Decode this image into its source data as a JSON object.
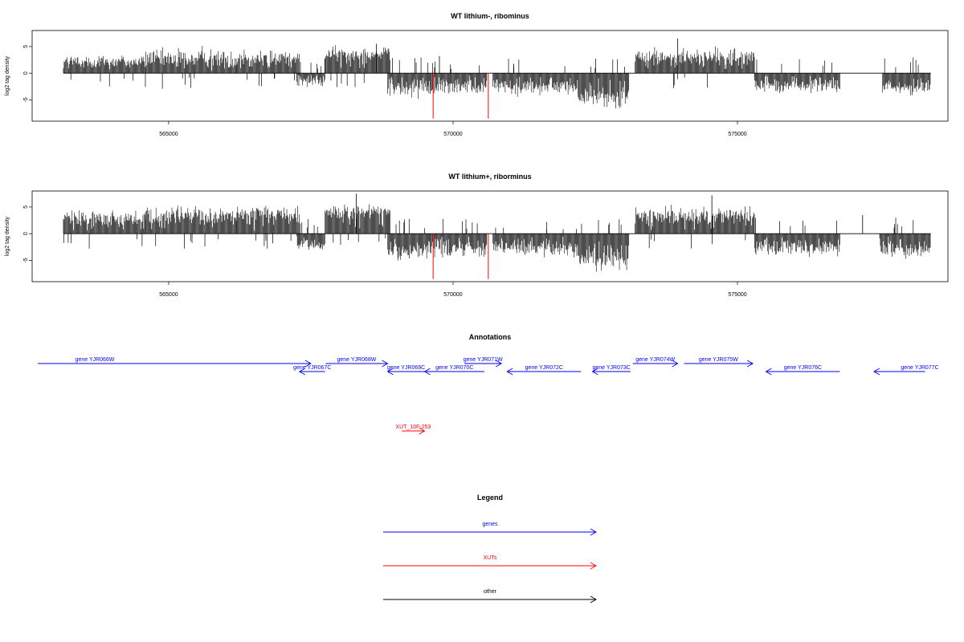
{
  "panels": [
    {
      "title": "WT lithium-, ribominus",
      "ylabel": "log2 tag density",
      "yticks": [
        -5,
        0,
        5
      ],
      "xticks": [
        565000,
        570000,
        575000
      ]
    },
    {
      "title": "WT lithium+, riborminus",
      "ylabel": "log2 tag density",
      "yticks": [
        -5,
        0,
        5
      ],
      "xticks": [
        565000,
        570000,
        575000
      ]
    }
  ],
  "annotations": {
    "title": "Annotations",
    "genes": [
      {
        "label": "gene YJR066W",
        "start": 562700,
        "end": 567500,
        "strand": "+",
        "row": 0
      },
      {
        "label": "gene YJR067C",
        "start": 567300,
        "end": 567750,
        "strand": "-",
        "row": 1
      },
      {
        "label": "gene YJR068W",
        "start": 567760,
        "end": 568850,
        "strand": "+",
        "row": 0
      },
      {
        "label": "gene YJR069C",
        "start": 568850,
        "end": 569500,
        "strand": "-",
        "row": 1
      },
      {
        "label": "gene YJR070C",
        "start": 569500,
        "end": 570550,
        "strand": "-",
        "row": 1
      },
      {
        "label": "gene YJR071W",
        "start": 570200,
        "end": 570850,
        "strand": "+",
        "row": 0
      },
      {
        "label": "gene YJR072C",
        "start": 570950,
        "end": 572250,
        "strand": "-",
        "row": 1
      },
      {
        "label": "gene YJR073C",
        "start": 572450,
        "end": 573120,
        "strand": "-",
        "row": 1
      },
      {
        "label": "gene YJR074W",
        "start": 573160,
        "end": 573950,
        "strand": "+",
        "row": 0
      },
      {
        "label": "gene YJR075W",
        "start": 574060,
        "end": 575270,
        "strand": "+",
        "row": 0
      },
      {
        "label": "gene YJR076C",
        "start": 575500,
        "end": 576800,
        "strand": "-",
        "row": 1
      },
      {
        "label": "gene YJR077C",
        "start": 577400,
        "end": 578300,
        "strand": "-",
        "row": 1
      }
    ],
    "xuts": [
      {
        "label": "XUT_10F-253",
        "start": 569100,
        "end": 569500,
        "strand": "+"
      }
    ]
  },
  "legend": {
    "title": "Legend",
    "items": [
      {
        "label": "genes",
        "color": "#0000ff"
      },
      {
        "label": "XUTs",
        "color": "#ff0000"
      },
      {
        "label": "other",
        "color": "#000000"
      }
    ]
  },
  "chart_data": [
    {
      "type": "bar",
      "title": "WT lithium-, ribominus",
      "ylabel": "log2 tag density",
      "xlim": [
        562600,
        578700
      ],
      "ylim": [
        -9,
        8
      ],
      "grid": false,
      "mark_color": "#000000",
      "highlight_color": "#ff0000",
      "segments": [
        {
          "start": 563150,
          "end": 564600,
          "strand": "+",
          "mean": 2.2,
          "spread": 1.3
        },
        {
          "start": 564600,
          "end": 566200,
          "strand": "+",
          "mean": 2.8,
          "spread": 1.5
        },
        {
          "start": 566200,
          "end": 567300,
          "strand": "+",
          "mean": 3.0,
          "spread": 1.4
        },
        {
          "start": 567250,
          "end": 567750,
          "strand": "-",
          "mean": -1.5,
          "spread": 1.0
        },
        {
          "start": 567750,
          "end": 568900,
          "strand": "+",
          "mean": 3.6,
          "spread": 1.2
        },
        {
          "start": 568850,
          "end": 569600,
          "strand": "-",
          "mean": -2.8,
          "spread": 1.6
        },
        {
          "start": 569600,
          "end": 570600,
          "strand": "-",
          "mean": -2.6,
          "spread": 1.5
        },
        {
          "start": 570700,
          "end": 572200,
          "strand": "-",
          "mean": -2.5,
          "spread": 1.4
        },
        {
          "start": 572200,
          "end": 573100,
          "strand": "-",
          "mean": -4.5,
          "spread": 1.6
        },
        {
          "start": 573200,
          "end": 575300,
          "strand": "+",
          "mean": 3.0,
          "spread": 1.5
        },
        {
          "start": 575300,
          "end": 576800,
          "strand": "-",
          "mean": -2.3,
          "spread": 1.4
        },
        {
          "start": 577550,
          "end": 578400,
          "strand": "-",
          "mean": -2.8,
          "spread": 1.3
        }
      ],
      "highlights": [
        {
          "x": 569650,
          "y": -8.5
        },
        {
          "x": 570620,
          "y": -8.5
        }
      ],
      "notable_peaks": [
        {
          "x": 573950,
          "y": 6.5
        },
        {
          "x": 568650,
          "y": 5.5
        },
        {
          "x": 569760,
          "y": 3.2
        }
      ]
    },
    {
      "type": "bar",
      "title": "WT lithium+, riborminus",
      "ylabel": "log2 tag density",
      "xlim": [
        562600,
        578700
      ],
      "ylim": [
        -9,
        8
      ],
      "grid": false,
      "mark_color": "#000000",
      "highlight_color": "#ff0000",
      "segments": [
        {
          "start": 563150,
          "end": 564600,
          "strand": "+",
          "mean": 3.0,
          "spread": 1.4
        },
        {
          "start": 564600,
          "end": 566200,
          "strand": "+",
          "mean": 3.5,
          "spread": 1.4
        },
        {
          "start": 566200,
          "end": 567300,
          "strand": "+",
          "mean": 3.6,
          "spread": 1.3
        },
        {
          "start": 567250,
          "end": 567750,
          "strand": "-",
          "mean": -2.0,
          "spread": 1.1
        },
        {
          "start": 567750,
          "end": 568900,
          "strand": "+",
          "mean": 4.0,
          "spread": 1.3
        },
        {
          "start": 568850,
          "end": 569600,
          "strand": "-",
          "mean": -3.6,
          "spread": 1.6
        },
        {
          "start": 569600,
          "end": 570600,
          "strand": "-",
          "mean": -3.0,
          "spread": 1.5
        },
        {
          "start": 570700,
          "end": 572200,
          "strand": "-",
          "mean": -2.8,
          "spread": 1.4
        },
        {
          "start": 572200,
          "end": 573100,
          "strand": "-",
          "mean": -5.2,
          "spread": 1.6
        },
        {
          "start": 573200,
          "end": 575300,
          "strand": "+",
          "mean": 3.4,
          "spread": 1.5
        },
        {
          "start": 575300,
          "end": 576800,
          "strand": "-",
          "mean": -2.8,
          "spread": 1.4
        },
        {
          "start": 577500,
          "end": 578400,
          "strand": "-",
          "mean": -3.0,
          "spread": 1.3
        }
      ],
      "highlights": [
        {
          "x": 569650,
          "y": -8.5
        },
        {
          "x": 570620,
          "y": -8.5
        }
      ],
      "notable_peaks": [
        {
          "x": 568300,
          "y": 7.5
        },
        {
          "x": 574550,
          "y": 7.2
        },
        {
          "x": 577200,
          "y": 3.5
        }
      ]
    }
  ]
}
